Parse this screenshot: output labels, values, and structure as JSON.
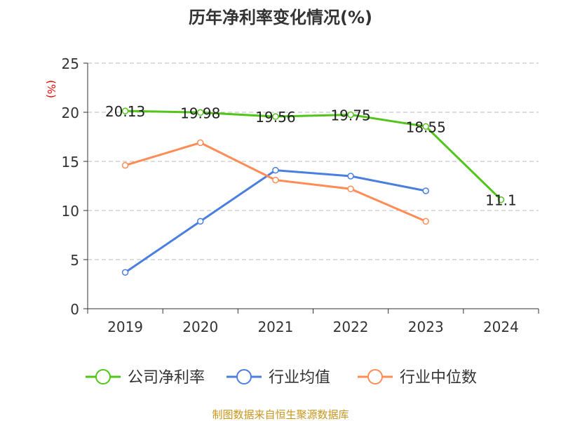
{
  "chart_data": {
    "type": "line",
    "title": "历年净利率变化情况(%)",
    "ylabel": "(%)",
    "categories": [
      "2019",
      "2020",
      "2021",
      "2022",
      "2023",
      "2024"
    ],
    "ylim": [
      0,
      25
    ],
    "yticks": [
      0,
      5,
      10,
      15,
      20,
      25
    ],
    "grid": true,
    "legend_position": "bottom",
    "series": [
      {
        "name": "公司净利率",
        "color": "#52c41a",
        "values": [
          20.13,
          19.98,
          19.56,
          19.75,
          18.55,
          11.1
        ],
        "labels": [
          "20.13",
          "19.98",
          "19.56",
          "19.75",
          "18.55",
          "11.1"
        ]
      },
      {
        "name": "行业均值",
        "color": "#4a7fe0",
        "values": [
          3.7,
          8.9,
          14.1,
          13.5,
          12.0,
          null
        ]
      },
      {
        "name": "行业中位数",
        "color": "#ff8c55",
        "values": [
          14.6,
          16.9,
          13.1,
          12.2,
          8.9,
          null
        ]
      }
    ]
  },
  "footer": "制图数据来自恒生聚源数据库"
}
